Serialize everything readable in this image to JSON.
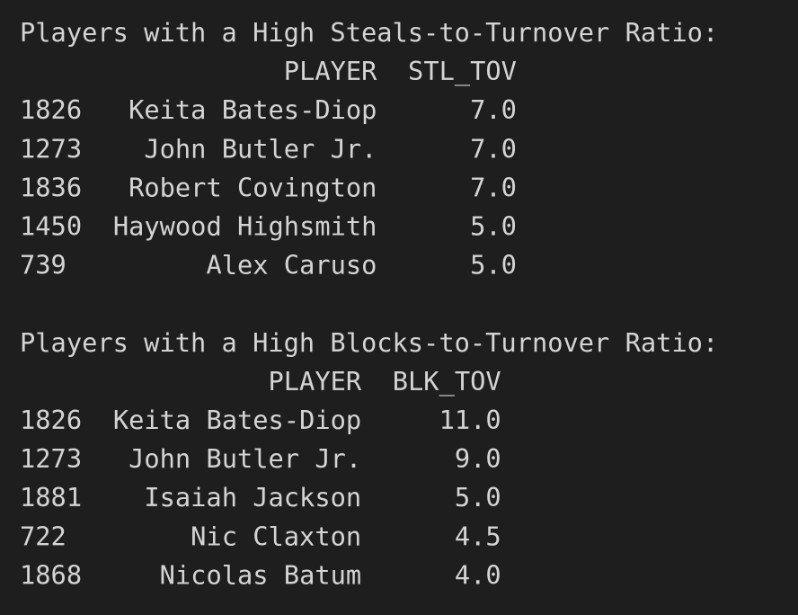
{
  "sections": [
    {
      "title": "Players with a High Steals-to-Turnover Ratio:",
      "columns": [
        "PLAYER",
        "STL_TOV"
      ],
      "rows": [
        [
          "1826",
          "Keita Bates-Diop",
          "7.0"
        ],
        [
          "1273",
          "John Butler Jr.",
          "7.0"
        ],
        [
          "1836",
          "Robert Covington",
          "7.0"
        ],
        [
          "1450",
          "Haywood Highsmith",
          "5.0"
        ],
        [
          "739",
          "Alex Caruso",
          "5.0"
        ]
      ]
    },
    {
      "title": "Players with a High Blocks-to-Turnover Ratio:",
      "columns": [
        "PLAYER",
        "BLK_TOV"
      ],
      "rows": [
        [
          "1826",
          "Keita Bates-Diop",
          "11.0"
        ],
        [
          "1273",
          "John Butler Jr.",
          "9.0"
        ],
        [
          "1881",
          "Isaiah Jackson",
          "5.0"
        ],
        [
          "722",
          "Nic Claxton",
          "4.5"
        ],
        [
          "1868",
          "Nicolas Batum",
          "4.0"
        ]
      ]
    }
  ]
}
